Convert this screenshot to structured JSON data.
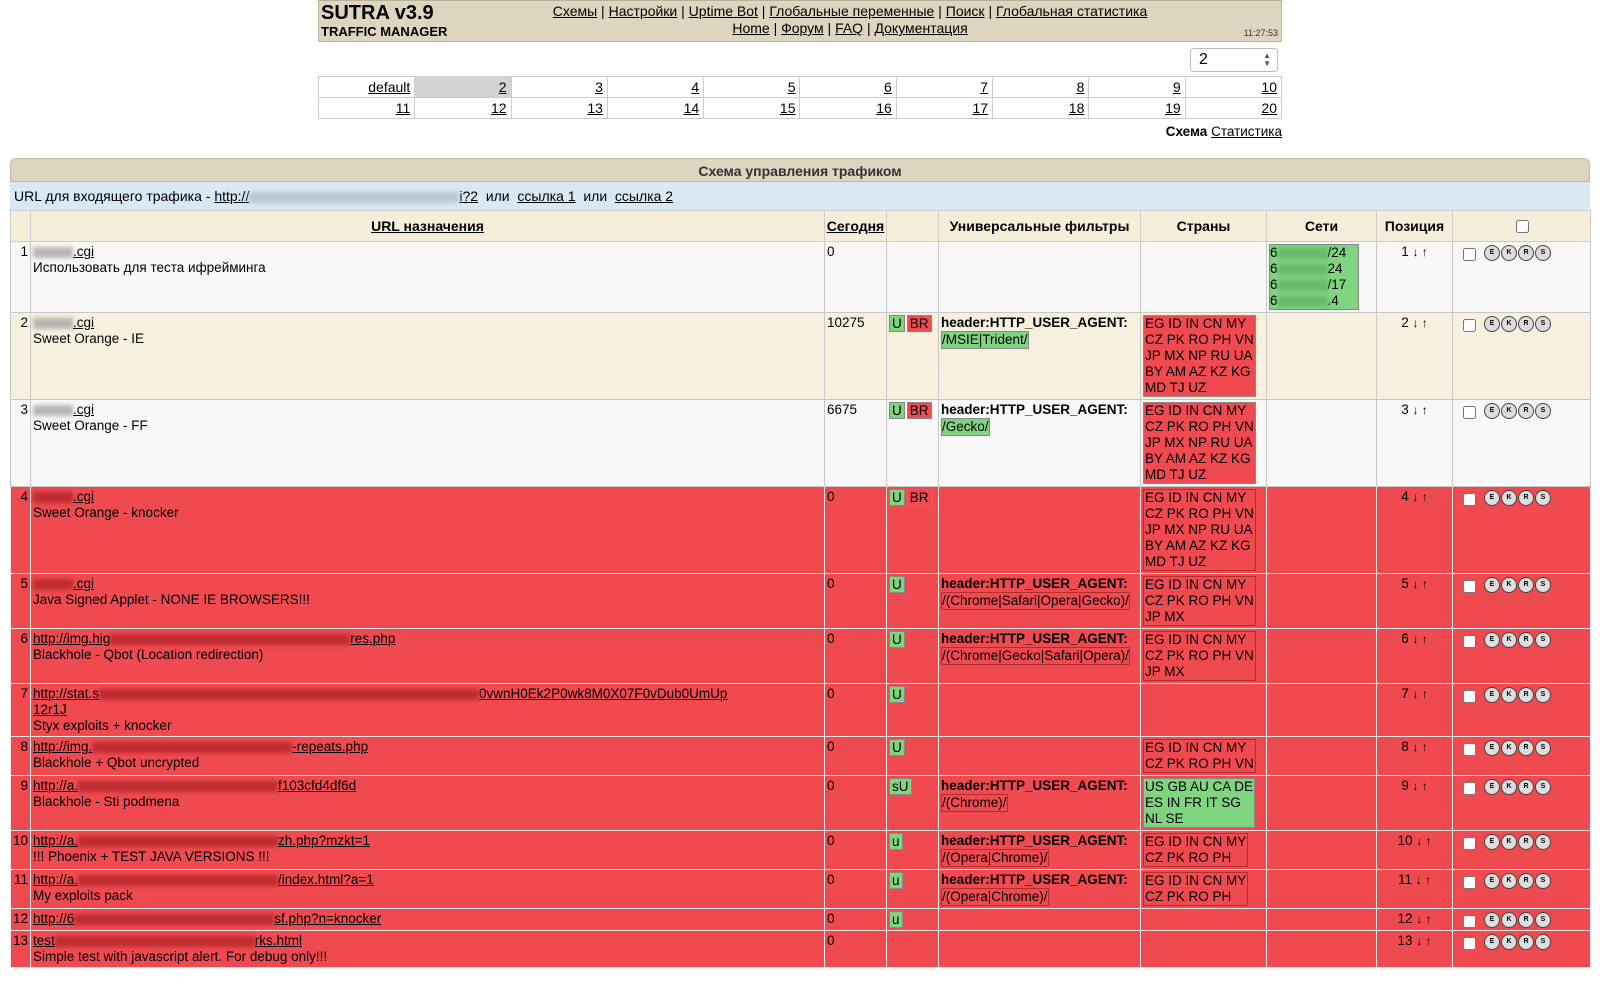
{
  "header": {
    "title": "SUTRA v3.9",
    "subtitle": "TRAFFIC MANAGER",
    "time": "11:27:53",
    "nav_row1": [
      "Схемы",
      "Настройки",
      "Uptime Bot",
      "Глобальные переменные",
      "Поиск",
      "Глобальная статистика"
    ],
    "nav_row2": [
      "Home",
      "Форум",
      "FAQ",
      "Документация"
    ]
  },
  "scheme_select": {
    "value": "2"
  },
  "schemes": [
    [
      "default",
      "2",
      "3",
      "4",
      "5",
      "6",
      "7",
      "8",
      "9",
      "10"
    ],
    [
      "11",
      "12",
      "13",
      "14",
      "15",
      "16",
      "17",
      "18",
      "19",
      "20"
    ]
  ],
  "scheme_links": {
    "label": "Схема",
    "link": "Статистика"
  },
  "panel": {
    "title": "Схема управления трафиком",
    "url_prefix": "URL для входящего трафика - ",
    "url_start": "http://",
    "url_end": "i?2",
    "or1": "или",
    "link1": "ссылка 1",
    "or2": "или",
    "link2": "ссылка 2"
  },
  "columns": {
    "url": "URL назначения",
    "today": "Сегодня",
    "flags": "",
    "filters": "Универсальные фильтры",
    "countries": "Страны",
    "nets": "Сети",
    "position": "Позиция"
  },
  "arrows": "↓ ↑",
  "action_icons": [
    "E",
    "K",
    "R",
    "S"
  ],
  "rows": [
    {
      "n": "1",
      "url": ".cgi",
      "desc": "Использовать для теста ифрейминга",
      "today": "0",
      "u": "",
      "br": "",
      "filter_hdr": "",
      "filter_val": "",
      "countries": [],
      "nets": [
        "6",
        "6",
        "6",
        "6"
      ],
      "nets_suffix": [
        "/24",
        "24",
        "/17",
        ".4"
      ],
      "style": "light",
      "pos": "1"
    },
    {
      "n": "2",
      "url": ".cgi",
      "desc": "Sweet Orange - IE",
      "today": "10275",
      "u": "U",
      "br": "BR",
      "filter_hdr": "header:HTTP_USER_AGENT:",
      "filter_val": "/MSIE|Trident/",
      "countries": [
        "EG ID IN CN MY",
        "CZ PK RO PH VN",
        "JP MX NP RU UA",
        "BY AM AZ KZ KG",
        "MD TJ UZ"
      ],
      "nets": [],
      "style": "tan",
      "pos": "2"
    },
    {
      "n": "3",
      "url": ".cgi",
      "desc": "Sweet Orange - FF",
      "today": "6675",
      "u": "U",
      "br": "BR",
      "filter_hdr": "header:HTTP_USER_AGENT:",
      "filter_val": "/Gecko/",
      "countries": [
        "EG ID IN CN MY",
        "CZ PK RO PH VN",
        "JP MX NP RU UA",
        "BY AM AZ KZ KG",
        "MD TJ UZ"
      ],
      "nets": [],
      "style": "light",
      "pos": "3"
    },
    {
      "n": "4",
      "url": ".cgi",
      "desc": "Sweet Orange - knocker",
      "today": "0",
      "u": "U",
      "br": "BR",
      "filter_hdr": "",
      "filter_val": "",
      "countries": [
        "EG ID IN CN MY",
        "CZ PK RO PH VN",
        "JP MX NP RU UA",
        "BY AM AZ KZ KG",
        "MD TJ UZ"
      ],
      "nets": [],
      "style": "red",
      "pos": "4"
    },
    {
      "n": "5",
      "url": ".cgi",
      "desc": "Java Signed Applet - NONE IE BROWSERS!!!",
      "today": "0",
      "u": "U",
      "br": "",
      "filter_hdr": "header:HTTP_USER_AGENT:",
      "filter_val": "/(Chrome|Safari|Opera|Gecko)/",
      "countries": [
        "EG ID IN CN MY",
        "CZ PK RO PH VN",
        "JP MX"
      ],
      "nets": [],
      "style": "red",
      "pos": "5"
    },
    {
      "n": "6",
      "url": "http://img.hig",
      "url_end": "res.php",
      "desc": "Blackhole - Qbot (Location redirection)",
      "today": "0",
      "u": "U",
      "br": "",
      "filter_hdr": "header:HTTP_USER_AGENT:",
      "filter_val": "/(Chrome|Gecko|Safari|Opera)/",
      "countries": [
        "EG ID IN CN MY",
        "CZ PK RO PH VN",
        "JP MX"
      ],
      "nets": [],
      "style": "red",
      "pos": "6"
    },
    {
      "n": "7",
      "url": "http://stat.s",
      "url_end": "0vwnH0Ek2P0wk8M0X07F0vDub0UmUp",
      "url_line2": "12r1J",
      "desc": "Styx exploits + knocker",
      "today": "0",
      "u": "U",
      "br": "",
      "filter_hdr": "",
      "filter_val": "",
      "countries": [],
      "nets": [],
      "style": "red",
      "pos": "7"
    },
    {
      "n": "8",
      "url": "http://img.",
      "url_end": "-repeats.php",
      "desc": "Blackhole + Qbot uncrypted",
      "today": "0",
      "u": "U",
      "br": "",
      "filter_hdr": "",
      "filter_val": "",
      "countries": [
        "EG ID IN CN MY",
        "CZ PK RO PH VN"
      ],
      "nets": [],
      "style": "red",
      "pos": "8"
    },
    {
      "n": "9",
      "url": "http://a.",
      "url_end": "f103cfd4df6d",
      "desc": "Blackhole - Sti podmena",
      "today": "0",
      "u": "sU",
      "br": "",
      "filter_hdr": "header:HTTP_USER_AGENT:",
      "filter_val": "/(Chrome)/",
      "countries": [
        "US GB AU CA DE",
        "ES IN FR IT SG",
        "NL SE"
      ],
      "countries_green": true,
      "nets": [],
      "style": "red",
      "pos": "9"
    },
    {
      "n": "10",
      "url": "http://a.",
      "url_end": "zh.php?mzkt=1",
      "desc": "!!! Phoenix + TEST JAVA VERSIONS !!!",
      "today": "0",
      "u": "u",
      "br": "",
      "filter_hdr": "header:HTTP_USER_AGENT:",
      "filter_val": "/(Opera|Chrome)/",
      "countries": [
        "EG ID IN CN MY",
        "CZ PK RO PH"
      ],
      "nets": [],
      "style": "red",
      "pos": "10"
    },
    {
      "n": "11",
      "url": "http://a.",
      "url_end": "/index.html?a=1",
      "desc": "My exploits pack",
      "today": "0",
      "u": "u",
      "br": "",
      "filter_hdr": "header:HTTP_USER_AGENT:",
      "filter_val": "/(Opera|Chrome)/",
      "countries": [
        "EG ID IN CN MY",
        "CZ PK RO PH"
      ],
      "nets": [],
      "style": "red",
      "pos": "11"
    },
    {
      "n": "12",
      "url": "http://6",
      "url_end": "sf.php?n=knocker",
      "desc": "",
      "today": "0",
      "u": "u",
      "br": "",
      "filter_hdr": "",
      "filter_val": "",
      "countries": [],
      "nets": [],
      "style": "red",
      "pos": "12"
    },
    {
      "n": "13",
      "url": "test",
      "url_end": "rks.html",
      "desc": "Simple test with javascript alert. For debug only!!!",
      "today": "0",
      "u": "",
      "br": "",
      "filter_hdr": "",
      "filter_val": "",
      "countries": [],
      "nets": [],
      "style": "red",
      "pos": "13"
    }
  ]
}
